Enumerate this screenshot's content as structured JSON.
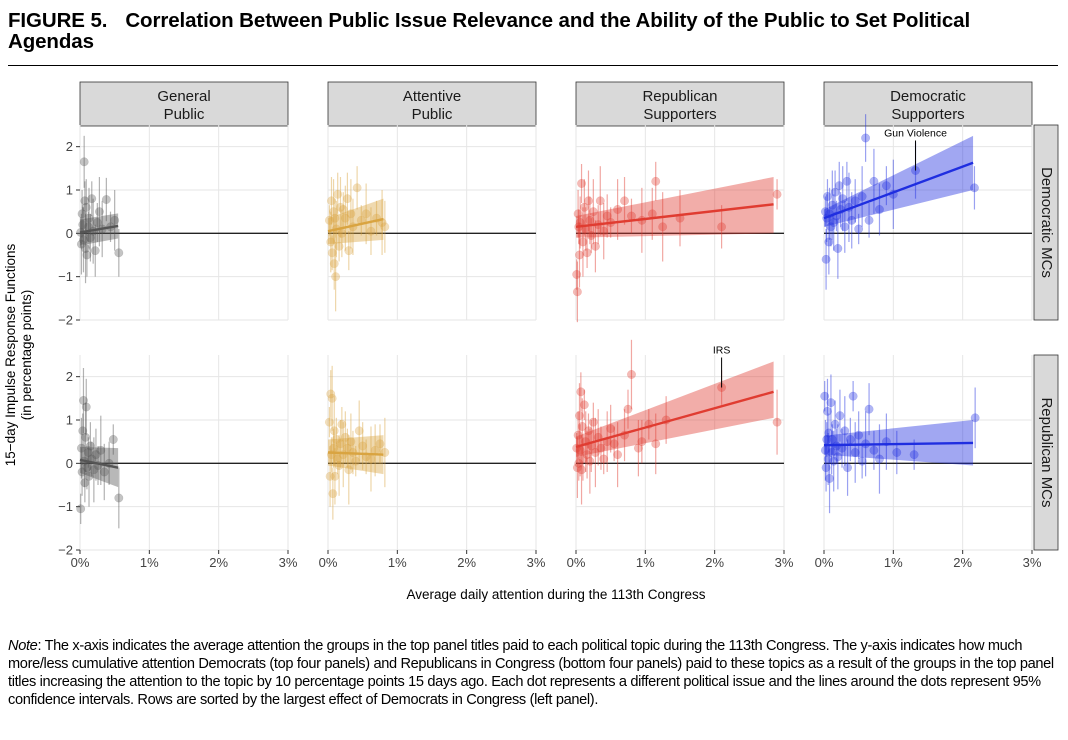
{
  "figure": {
    "number": "FIGURE 5.",
    "title": "Correlation Between Public Issue Relevance and the Ability of the Public to Set Political Agendas"
  },
  "note": {
    "label": "Note",
    "text": ": The x-axis indicates the average attention the groups in the top panel titles paid to each political topic during the 113th Congress. The y-axis indicates how much more/less cumulative attention Democrats (top four panels) and Republicans in Congress (bottom four panels) paid to these topics as a result of the groups in the top panel titles increasing the attention to the topic by 10 percentage points 15 days ago. Each dot represents a different political issue and the lines around the dots represent 95% confidence intervals. Rows are sorted by the largest effect of Democrats in Congress (left panel)."
  },
  "chart_data": {
    "type": "scatter",
    "xlabel": "Average daily attention during the 113th Congress",
    "ylabel_line1": "15−day Impulse Response Functions",
    "ylabel_line2": "(in percentage points)",
    "xlim": [
      0,
      3
    ],
    "ylim": [
      -2,
      2.5
    ],
    "x_ticks": [
      0,
      1,
      2,
      3
    ],
    "x_tick_labels": [
      "0%",
      "1%",
      "2%",
      "3%"
    ],
    "y_ticks": [
      -2,
      -1,
      0,
      1,
      2
    ],
    "y_tick_labels": [
      "−2",
      "−1",
      "0",
      "1",
      "2"
    ],
    "grid": true,
    "columns": [
      {
        "line1": "General",
        "line2": "Public",
        "color": "#555555"
      },
      {
        "line1": "Attentive",
        "line2": "Public",
        "color": "#d9a441"
      },
      {
        "line1": "Republican",
        "line2": "Supporters",
        "color": "#e03c31"
      },
      {
        "line1": "Democratic",
        "line2": "Supporters",
        "color": "#1f2ee0"
      }
    ],
    "rows": [
      {
        "label": "Democratic MCs"
      },
      {
        "label": "Republican MCs"
      }
    ],
    "panels": [
      {
        "row": 0,
        "col": 0,
        "fit": {
          "x": [
            0,
            0.55
          ],
          "y": [
            0.02,
            0.17
          ],
          "band_low": [
            -0.28,
            -0.12
          ],
          "band_high": [
            0.32,
            0.46
          ]
        },
        "points": [
          [
            0.01,
            0.02
          ],
          [
            0.02,
            -0.25
          ],
          [
            0.03,
            0.45
          ],
          [
            0.04,
            0.2
          ],
          [
            0.05,
            -0.15
          ],
          [
            0.06,
            1.65
          ],
          [
            0.07,
            0.75
          ],
          [
            0.08,
            -0.35
          ],
          [
            0.09,
            0.6
          ],
          [
            0.1,
            -0.5
          ],
          [
            0.12,
            0.15
          ],
          [
            0.13,
            0.35
          ],
          [
            0.15,
            -0.1
          ],
          [
            0.17,
            0.8
          ],
          [
            0.19,
            0.05
          ],
          [
            0.22,
            -0.4
          ],
          [
            0.25,
            0.25
          ],
          [
            0.28,
            0.5
          ],
          [
            0.32,
            0.1
          ],
          [
            0.38,
            0.78
          ],
          [
            0.44,
            0.15
          ],
          [
            0.5,
            0.3
          ],
          [
            0.56,
            -0.45
          ]
        ]
      },
      {
        "row": 0,
        "col": 1,
        "fit": {
          "x": [
            0,
            0.8
          ],
          "y": [
            0.05,
            0.33
          ],
          "band_low": [
            -0.25,
            -0.15
          ],
          "band_high": [
            0.35,
            0.8
          ]
        },
        "points": [
          [
            0.02,
            0.3
          ],
          [
            0.04,
            -0.2
          ],
          [
            0.05,
            0.75
          ],
          [
            0.06,
            -0.45
          ],
          [
            0.08,
            0.5
          ],
          [
            0.09,
            -0.7
          ],
          [
            0.1,
            0.35
          ],
          [
            0.11,
            -1.0
          ],
          [
            0.12,
            0.1
          ],
          [
            0.14,
            0.9
          ],
          [
            0.16,
            -0.3
          ],
          [
            0.18,
            0.6
          ],
          [
            0.2,
            0.0
          ],
          [
            0.22,
            0.55
          ],
          [
            0.25,
            0.35
          ],
          [
            0.28,
            0.8
          ],
          [
            0.3,
            -0.4
          ],
          [
            0.33,
            0.45
          ],
          [
            0.36,
            0.15
          ],
          [
            0.42,
            1.05
          ],
          [
            0.48,
            0.3
          ],
          [
            0.55,
            0.45
          ],
          [
            0.62,
            0.05
          ],
          [
            0.7,
            0.35
          ],
          [
            0.78,
            0.25
          ],
          [
            0.82,
            0.15
          ]
        ]
      },
      {
        "row": 0,
        "col": 2,
        "fit": {
          "x": [
            0,
            2.85
          ],
          "y": [
            0.15,
            0.67
          ],
          "band_low": [
            -0.1,
            0.0
          ],
          "band_high": [
            0.4,
            1.3
          ]
        },
        "points": [
          [
            0.01,
            -0.95
          ],
          [
            0.02,
            -1.35
          ],
          [
            0.03,
            0.45
          ],
          [
            0.04,
            0.15
          ],
          [
            0.05,
            -0.5
          ],
          [
            0.06,
            0.25
          ],
          [
            0.08,
            1.15
          ],
          [
            0.1,
            -0.2
          ],
          [
            0.12,
            0.6
          ],
          [
            0.14,
            0.1
          ],
          [
            0.16,
            -0.45
          ],
          [
            0.18,
            0.75
          ],
          [
            0.2,
            0.3
          ],
          [
            0.22,
            -0.05
          ],
          [
            0.25,
            0.5
          ],
          [
            0.28,
            -0.3
          ],
          [
            0.32,
            0.2
          ],
          [
            0.35,
            0.75
          ],
          [
            0.4,
            0.05
          ],
          [
            0.45,
            0.4
          ],
          [
            0.5,
            0.25
          ],
          [
            0.6,
            0.55
          ],
          [
            0.7,
            0.75
          ],
          [
            0.8,
            0.4
          ],
          [
            0.95,
            0.3
          ],
          [
            1.1,
            0.45
          ],
          [
            1.15,
            1.2
          ],
          [
            1.25,
            0.15
          ],
          [
            1.5,
            0.35
          ],
          [
            2.1,
            0.15
          ],
          [
            2.9,
            0.9
          ]
        ]
      },
      {
        "row": 0,
        "col": 3,
        "fit": {
          "x": [
            0,
            2.15
          ],
          "y": [
            0.35,
            1.63
          ],
          "band_low": [
            0.15,
            1.0
          ],
          "band_high": [
            0.55,
            2.25
          ]
        },
        "points": [
          [
            0.02,
            0.5
          ],
          [
            0.03,
            -0.6
          ],
          [
            0.04,
            0.35
          ],
          [
            0.05,
            0.85
          ],
          [
            0.07,
            -0.2
          ],
          [
            0.08,
            0.45
          ],
          [
            0.1,
            0.15
          ],
          [
            0.12,
            0.65
          ],
          [
            0.14,
            0.25
          ],
          [
            0.16,
            0.95
          ],
          [
            0.18,
            0.4
          ],
          [
            0.2,
            -0.35
          ],
          [
            0.22,
            1.1
          ],
          [
            0.24,
            0.55
          ],
          [
            0.27,
            0.8
          ],
          [
            0.3,
            0.15
          ],
          [
            0.33,
            1.2
          ],
          [
            0.36,
            0.6
          ],
          [
            0.4,
            0.3
          ],
          [
            0.45,
            0.75
          ],
          [
            0.5,
            0.1
          ],
          [
            0.55,
            0.85
          ],
          [
            0.6,
            2.2
          ],
          [
            0.65,
            0.3
          ],
          [
            0.72,
            1.2
          ],
          [
            0.8,
            0.55
          ],
          [
            0.9,
            1.1
          ],
          [
            1.0,
            0.9
          ],
          [
            1.32,
            1.45
          ],
          [
            2.17,
            1.05
          ]
        ],
        "annotation": {
          "text": "Gun Violence",
          "x": 1.32,
          "y": 1.45
        }
      },
      {
        "row": 1,
        "col": 0,
        "fit": {
          "x": [
            0,
            0.55
          ],
          "y": [
            0.08,
            -0.1
          ],
          "band_low": [
            -0.22,
            -0.55
          ],
          "band_high": [
            0.38,
            0.35
          ]
        },
        "points": [
          [
            0.01,
            -1.05
          ],
          [
            0.02,
            0.35
          ],
          [
            0.03,
            -0.2
          ],
          [
            0.04,
            0.75
          ],
          [
            0.05,
            1.45
          ],
          [
            0.06,
            0.05
          ],
          [
            0.07,
            -0.45
          ],
          [
            0.08,
            0.6
          ],
          [
            0.09,
            1.3
          ],
          [
            0.1,
            -0.1
          ],
          [
            0.12,
            0.25
          ],
          [
            0.13,
            -0.3
          ],
          [
            0.15,
            0.4
          ],
          [
            0.17,
            0.1
          ],
          [
            0.2,
            -0.15
          ],
          [
            0.23,
            0.2
          ],
          [
            0.26,
            -0.05
          ],
          [
            0.3,
            0.3
          ],
          [
            0.35,
            -0.2
          ],
          [
            0.42,
            0.0
          ],
          [
            0.48,
            0.55
          ],
          [
            0.56,
            -0.8
          ]
        ]
      },
      {
        "row": 1,
        "col": 1,
        "fit": {
          "x": [
            0,
            0.8
          ],
          "y": [
            0.25,
            0.2
          ],
          "band_low": [
            -0.05,
            -0.25
          ],
          "band_high": [
            0.55,
            0.65
          ]
        },
        "points": [
          [
            0.02,
            0.95
          ],
          [
            0.03,
            -0.3
          ],
          [
            0.04,
            1.6
          ],
          [
            0.05,
            0.2
          ],
          [
            0.06,
            1.5
          ],
          [
            0.07,
            -0.7
          ],
          [
            0.08,
            0.35
          ],
          [
            0.09,
            0.75
          ],
          [
            0.1,
            -0.3
          ],
          [
            0.12,
            0.55
          ],
          [
            0.14,
            0.1
          ],
          [
            0.16,
            -0.05
          ],
          [
            0.18,
            0.45
          ],
          [
            0.2,
            0.9
          ],
          [
            0.22,
            0.2
          ],
          [
            0.25,
            0.6
          ],
          [
            0.28,
            0.35
          ],
          [
            0.3,
            -0.15
          ],
          [
            0.33,
            0.5
          ],
          [
            0.36,
            0.25
          ],
          [
            0.4,
            0.05
          ],
          [
            0.45,
            0.75
          ],
          [
            0.5,
            0.4
          ],
          [
            0.55,
            0.15
          ],
          [
            0.62,
            0.1
          ],
          [
            0.68,
            0.3
          ],
          [
            0.75,
            0.45
          ],
          [
            0.82,
            0.25
          ]
        ]
      },
      {
        "row": 1,
        "col": 2,
        "fit": {
          "x": [
            0,
            2.85
          ],
          "y": [
            0.38,
            1.65
          ],
          "band_low": [
            0.15,
            1.05
          ],
          "band_high": [
            0.62,
            2.35
          ]
        },
        "points": [
          [
            0.01,
            0.35
          ],
          [
            0.02,
            -0.1
          ],
          [
            0.03,
            0.65
          ],
          [
            0.04,
            0.0
          ],
          [
            0.05,
            1.1
          ],
          [
            0.06,
            0.3
          ],
          [
            0.07,
            1.65
          ],
          [
            0.08,
            -0.15
          ],
          [
            0.09,
            0.85
          ],
          [
            0.1,
            0.1
          ],
          [
            0.12,
            1.35
          ],
          [
            0.14,
            0.5
          ],
          [
            0.16,
            0.2
          ],
          [
            0.18,
            0.75
          ],
          [
            0.2,
            0.05
          ],
          [
            0.22,
            0.4
          ],
          [
            0.25,
            0.95
          ],
          [
            0.28,
            0.25
          ],
          [
            0.32,
            0.6
          ],
          [
            0.36,
            0.35
          ],
          [
            0.4,
            0.1
          ],
          [
            0.45,
            0.5
          ],
          [
            0.5,
            0.8
          ],
          [
            0.55,
            0.45
          ],
          [
            0.6,
            0.2
          ],
          [
            0.7,
            0.65
          ],
          [
            0.75,
            1.25
          ],
          [
            0.8,
            2.05
          ],
          [
            0.9,
            0.35
          ],
          [
            0.95,
            0.5
          ],
          [
            1.05,
            0.9
          ],
          [
            1.15,
            0.45
          ],
          [
            1.3,
            1.0
          ],
          [
            2.1,
            1.75
          ],
          [
            2.9,
            0.95
          ]
        ],
        "annotation": {
          "text": "IRS",
          "x": 2.1,
          "y": 1.75
        }
      },
      {
        "row": 1,
        "col": 3,
        "fit": {
          "x": [
            0,
            2.15
          ],
          "y": [
            0.42,
            0.47
          ],
          "band_low": [
            0.2,
            -0.05
          ],
          "band_high": [
            0.64,
            1.0
          ]
        },
        "points": [
          [
            0.01,
            1.55
          ],
          [
            0.02,
            0.3
          ],
          [
            0.03,
            -0.1
          ],
          [
            0.04,
            0.55
          ],
          [
            0.05,
            1.2
          ],
          [
            0.06,
            0.1
          ],
          [
            0.07,
            0.7
          ],
          [
            0.08,
            -0.35
          ],
          [
            0.1,
            1.4
          ],
          [
            0.11,
            0.25
          ],
          [
            0.12,
            0.55
          ],
          [
            0.14,
            0.05
          ],
          [
            0.16,
            0.9
          ],
          [
            0.18,
            0.4
          ],
          [
            0.2,
            0.15
          ],
          [
            0.23,
            1.1
          ],
          [
            0.26,
            0.35
          ],
          [
            0.3,
            0.75
          ],
          [
            0.34,
            -0.1
          ],
          [
            0.38,
            0.55
          ],
          [
            0.42,
            1.55
          ],
          [
            0.45,
            0.25
          ],
          [
            0.5,
            0.65
          ],
          [
            0.55,
            0.05
          ],
          [
            0.6,
            0.45
          ],
          [
            0.65,
            1.25
          ],
          [
            0.72,
            0.3
          ],
          [
            0.8,
            0.1
          ],
          [
            0.9,
            0.5
          ],
          [
            1.05,
            0.25
          ],
          [
            1.3,
            0.2
          ],
          [
            2.18,
            1.05
          ]
        ]
      }
    ]
  }
}
